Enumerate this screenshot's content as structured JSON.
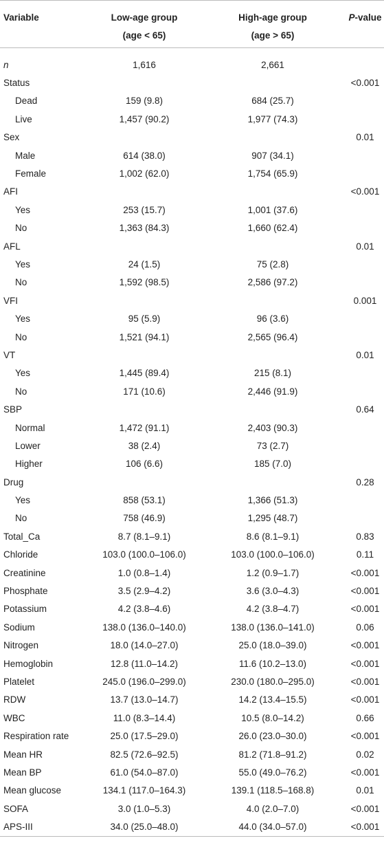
{
  "header": {
    "variable": "Variable",
    "low": [
      "Low-age group",
      "(age < 65)"
    ],
    "high": [
      "High-age group",
      "(age > 65)"
    ],
    "p": "P-value"
  },
  "rows": [
    {
      "variable": "n",
      "low": "1,616",
      "high": "2,661"
    },
    {
      "variable": "Status",
      "p": "<0.001",
      "levels": [
        {
          "label": "Dead",
          "low": "159 (9.8)",
          "high": "684 (25.7)"
        },
        {
          "label": "Live",
          "low": "1,457 (90.2)",
          "high": "1,977 (74.3)"
        }
      ]
    },
    {
      "variable": "Sex",
      "p": "0.01",
      "levels": [
        {
          "label": "Male",
          "low": "614 (38.0)",
          "high": "907 (34.1)"
        },
        {
          "label": "Female",
          "low": "1,002 (62.0)",
          "high": "1,754 (65.9)"
        }
      ]
    },
    {
      "variable": "AFI",
      "p": "<0.001",
      "levels": [
        {
          "label": "Yes",
          "low": "253 (15.7)",
          "high": "1,001 (37.6)"
        },
        {
          "label": "No",
          "low": "1,363 (84.3)",
          "high": "1,660 (62.4)"
        }
      ]
    },
    {
      "variable": "AFL",
      "p": "0.01",
      "levels": [
        {
          "label": "Yes",
          "low": "24 (1.5)",
          "high": "75 (2.8)"
        },
        {
          "label": "No",
          "low": "1,592 (98.5)",
          "high": "2,586 (97.2)"
        }
      ]
    },
    {
      "variable": "VFI",
      "p": "0.001",
      "levels": [
        {
          "label": "Yes",
          "low": "95 (5.9)",
          "high": "96 (3.6)"
        },
        {
          "label": "No",
          "low": "1,521 (94.1)",
          "high": "2,565 (96.4)"
        }
      ]
    },
    {
      "variable": "VT",
      "p": "0.01",
      "levels": [
        {
          "label": "Yes",
          "low": "1,445 (89.4)",
          "high": "215 (8.1)"
        },
        {
          "label": "No",
          "low": "171 (10.6)",
          "high": "2,446 (91.9)"
        }
      ]
    },
    {
      "variable": "SBP",
      "p": "0.64",
      "levels": [
        {
          "label": "Normal",
          "low": "1,472 (91.1)",
          "high": "2,403 (90.3)"
        },
        {
          "label": "Lower",
          "low": "38 (2.4)",
          "high": "73 (2.7)"
        },
        {
          "label": "Higher",
          "low": "106 (6.6)",
          "high": "185 (7.0)"
        }
      ]
    },
    {
      "variable": "Drug",
      "p": "0.28",
      "levels": [
        {
          "label": "Yes",
          "low": "858 (53.1)",
          "high": "1,366 (51.3)"
        },
        {
          "label": "No",
          "low": "758 (46.9)",
          "high": "1,295 (48.7)"
        }
      ]
    },
    {
      "variable": "Total_Ca",
      "low": "8.7 (8.1–9.1)",
      "high": "8.6 (8.1–9.1)",
      "p": "0.83"
    },
    {
      "variable": "Chloride",
      "low": "103.0 (100.0–106.0)",
      "high": "103.0 (100.0–106.0)",
      "p": "0.11"
    },
    {
      "variable": "Creatinine",
      "low": "1.0 (0.8–1.4)",
      "high": "1.2 (0.9–1.7)",
      "p": "<0.001"
    },
    {
      "variable": "Phosphate",
      "low": "3.5 (2.9–4.2)",
      "high": "3.6 (3.0–4.3)",
      "p": "<0.001"
    },
    {
      "variable": "Potassium",
      "low": "4.2 (3.8–4.6)",
      "high": "4.2 (3.8–4.7)",
      "p": "<0.001"
    },
    {
      "variable": "Sodium",
      "low": "138.0 (136.0–140.0)",
      "high": "138.0 (136.0–141.0)",
      "p": "0.06"
    },
    {
      "variable": "Nitrogen",
      "low": "18.0 (14.0–27.0)",
      "high": "25.0 (18.0–39.0)",
      "p": "<0.001"
    },
    {
      "variable": "Hemoglobin",
      "low": "12.8 (11.0–14.2)",
      "high": "11.6 (10.2–13.0)",
      "p": "<0.001"
    },
    {
      "variable": "Platelet",
      "low": "245.0 (196.0–299.0)",
      "high": "230.0 (180.0–295.0)",
      "p": "<0.001"
    },
    {
      "variable": "RDW",
      "low": "13.7 (13.0–14.7)",
      "high": "14.2 (13.4–15.5)",
      "p": "<0.001"
    },
    {
      "variable": "WBC",
      "low": "11.0 (8.3–14.4)",
      "high": "10.5 (8.0–14.2)",
      "p": "0.66"
    },
    {
      "variable": "Respiration rate",
      "low": "25.0 (17.5–29.0)",
      "high": "26.0 (23.0–30.0)",
      "p": "<0.001"
    },
    {
      "variable": "Mean HR",
      "low": "82.5 (72.6–92.5)",
      "high": "81.2 (71.8–91.2)",
      "p": "0.02"
    },
    {
      "variable": "Mean BP",
      "low": "61.0 (54.0–87.0)",
      "high": "55.0 (49.0–76.2)",
      "p": "<0.001"
    },
    {
      "variable": "Mean glucose",
      "low": "134.1 (117.0–164.3)",
      "high": "139.1 (118.5–168.8)",
      "p": "0.01"
    },
    {
      "variable": "SOFA",
      "low": "3.0 (1.0–5.3)",
      "high": "4.0 (2.0–7.0)",
      "p": "<0.001"
    },
    {
      "variable": "APS-III",
      "low": "34.0 (25.0–48.0)",
      "high": "44.0 (34.0–57.0)",
      "p": "<0.001"
    }
  ]
}
